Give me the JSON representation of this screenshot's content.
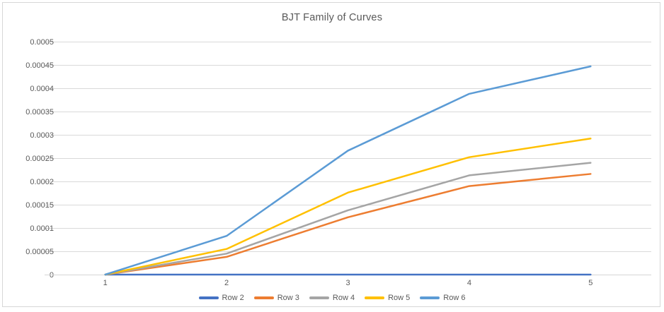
{
  "frame": {
    "background": "#ffffff",
    "border_color": "#d7d7d7"
  },
  "chart_data": {
    "type": "line",
    "title": "BJT Family of Curves",
    "title_color": "#595959",
    "categories": [
      "1",
      "2",
      "3",
      "4",
      "5"
    ],
    "x": [
      1,
      2,
      3,
      4,
      5
    ],
    "series": [
      {
        "name": "Row 2",
        "color": "#4472C4",
        "values": [
          0,
          0,
          0,
          0,
          0
        ]
      },
      {
        "name": "Row 3",
        "color": "#ED7D31",
        "values": [
          0,
          3.8e-05,
          0.000123,
          0.00019,
          0.000216
        ]
      },
      {
        "name": "Row 4",
        "color": "#A5A5A5",
        "values": [
          0,
          4.5e-05,
          0.000138,
          0.000213,
          0.00024
        ]
      },
      {
        "name": "Row 5",
        "color": "#FFC000",
        "values": [
          0,
          5.5e-05,
          0.000176,
          0.000252,
          0.000292
        ]
      },
      {
        "name": "Row 6",
        "color": "#5B9BD5",
        "values": [
          0,
          8.3e-05,
          0.000266,
          0.000388,
          0.000447
        ]
      }
    ],
    "xlabel": "",
    "ylabel": "",
    "ylim": [
      0,
      0.0005
    ],
    "y_tick_values": [
      0,
      5e-05,
      0.0001,
      0.00015,
      0.0002,
      0.00025,
      0.0003,
      0.00035,
      0.0004,
      0.00045,
      0.0005
    ],
    "y_tick_labels": [
      "0",
      "0.00005",
      "0.0001",
      "0.00015",
      "0.0002",
      "0.00025",
      "0.0003",
      "0.00035",
      "0.0004",
      "0.00045",
      "0.0005"
    ],
    "grid": "horizontal",
    "gridline_color": "#d9d9d9",
    "axis_line_color": "#d6d6d6",
    "axis_text_color": "#595959",
    "legend_position": "bottom",
    "line_width": 2.5
  }
}
